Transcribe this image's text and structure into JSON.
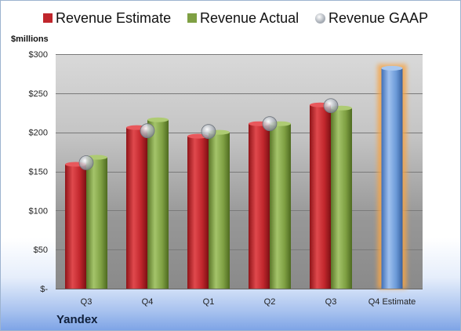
{
  "legend": {
    "estimate_label": "Revenue Estimate",
    "actual_label": "Revenue Actual",
    "gaap_label": "Revenue GAAP"
  },
  "unit_label": "$millions",
  "company": "Yandex",
  "colors": {
    "estimate": "#c0262c",
    "actual": "#7fa043",
    "gaap": "#b4b8c0",
    "forecast": "#6b9ad8",
    "forecast_glow": "#f5a54a"
  },
  "chart_data": {
    "type": "bar",
    "categories": [
      "Q3",
      "Q4",
      "Q1",
      "Q2",
      "Q3",
      "Q4 Estimate"
    ],
    "ylim": [
      0,
      300
    ],
    "yticks": [
      0,
      50,
      100,
      150,
      200,
      250,
      300
    ],
    "ytick_labels": [
      "$-",
      "$50",
      "$100",
      "$150",
      "$200",
      "$250",
      "$300"
    ],
    "ylabel": "$millions",
    "xlabel": "",
    "grid": true,
    "legend_position": "top",
    "series": [
      {
        "name": "Revenue Estimate",
        "values": [
          159,
          206,
          195,
          211,
          235,
          282
        ]
      },
      {
        "name": "Revenue Actual",
        "values": [
          168,
          216,
          200,
          211,
          231,
          null
        ]
      },
      {
        "name": "Revenue GAAP",
        "type": "marker",
        "values": [
          161,
          202,
          201,
          211,
          234,
          null
        ]
      }
    ]
  }
}
